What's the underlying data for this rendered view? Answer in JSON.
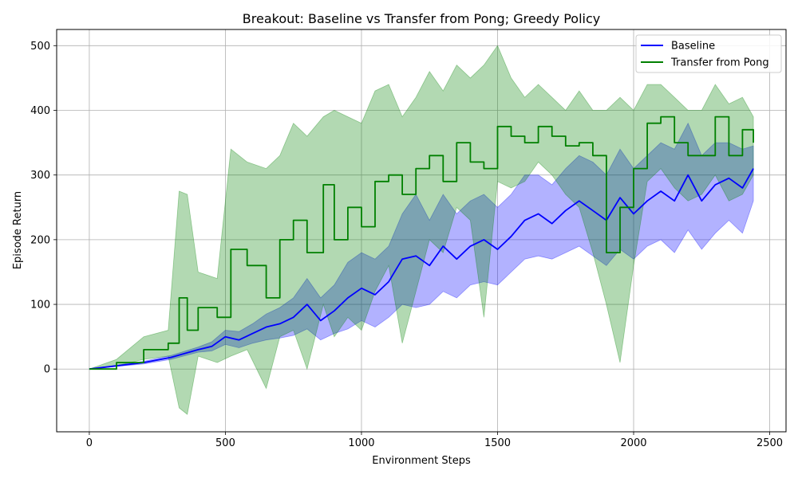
{
  "chart_data": {
    "type": "line",
    "title": "Breakout: Baseline vs Transfer from Pong; Greedy Policy",
    "xlabel": "Environment Steps",
    "ylabel": "Episode Return",
    "xlim": [
      -120,
      2560
    ],
    "ylim": [
      -97,
      525
    ],
    "xticks": [
      0,
      500,
      1000,
      1500,
      2000,
      2500
    ],
    "yticks": [
      0,
      100,
      200,
      300,
      400,
      500
    ],
    "grid": true,
    "legend_position": "top-right",
    "series": [
      {
        "name": "Baseline",
        "color": "#0000ff",
        "band_alpha": 0.3,
        "x": [
          0,
          100,
          200,
          300,
          400,
          450,
          500,
          550,
          600,
          650,
          700,
          750,
          800,
          850,
          900,
          950,
          1000,
          1050,
          1100,
          1150,
          1200,
          1250,
          1300,
          1350,
          1400,
          1450,
          1500,
          1550,
          1600,
          1650,
          1700,
          1750,
          1800,
          1850,
          1900,
          1950,
          2000,
          2050,
          2100,
          2150,
          2200,
          2250,
          2300,
          2350,
          2400,
          2440
        ],
        "mean": [
          0,
          5,
          10,
          18,
          30,
          35,
          50,
          45,
          55,
          65,
          70,
          80,
          100,
          75,
          90,
          110,
          125,
          115,
          135,
          170,
          175,
          160,
          190,
          170,
          190,
          200,
          185,
          205,
          230,
          240,
          225,
          245,
          260,
          245,
          230,
          265,
          240,
          260,
          275,
          260,
          300,
          260,
          285,
          295,
          280,
          310
        ],
        "lower": [
          0,
          4,
          8,
          15,
          26,
          28,
          38,
          33,
          40,
          45,
          48,
          52,
          62,
          45,
          55,
          62,
          75,
          65,
          80,
          100,
          95,
          100,
          120,
          110,
          130,
          135,
          130,
          150,
          170,
          175,
          170,
          180,
          190,
          175,
          160,
          185,
          170,
          190,
          200,
          180,
          215,
          185,
          210,
          230,
          210,
          260
        ],
        "upper": [
          0,
          6,
          12,
          21,
          34,
          42,
          60,
          58,
          70,
          85,
          95,
          110,
          140,
          110,
          130,
          165,
          180,
          170,
          190,
          240,
          270,
          230,
          270,
          240,
          260,
          270,
          250,
          270,
          300,
          300,
          285,
          310,
          330,
          320,
          300,
          340,
          310,
          330,
          350,
          340,
          380,
          330,
          350,
          350,
          340,
          345
        ]
      },
      {
        "name": "Transfer from Pong",
        "color": "#008000",
        "band_alpha": 0.3,
        "x": [
          0,
          100,
          200,
          290,
          330,
          360,
          400,
          470,
          520,
          580,
          650,
          700,
          750,
          800,
          860,
          900,
          950,
          1000,
          1050,
          1100,
          1150,
          1200,
          1250,
          1300,
          1350,
          1400,
          1450,
          1500,
          1550,
          1600,
          1650,
          1700,
          1750,
          1800,
          1850,
          1900,
          1950,
          2000,
          2050,
          2100,
          2150,
          2200,
          2250,
          2300,
          2350,
          2400,
          2440
        ],
        "mean": [
          0,
          10,
          30,
          40,
          110,
          60,
          95,
          80,
          185,
          160,
          110,
          200,
          230,
          180,
          285,
          200,
          250,
          220,
          290,
          300,
          270,
          310,
          330,
          290,
          350,
          320,
          310,
          375,
          360,
          350,
          375,
          360,
          345,
          350,
          330,
          180,
          250,
          310,
          380,
          390,
          350,
          330,
          330,
          390,
          330,
          370,
          350
        ],
        "lower": [
          0,
          5,
          15,
          20,
          -60,
          -70,
          20,
          10,
          20,
          30,
          -30,
          50,
          60,
          0,
          100,
          50,
          80,
          60,
          120,
          160,
          40,
          120,
          200,
          180,
          250,
          230,
          80,
          290,
          280,
          290,
          320,
          300,
          270,
          250,
          180,
          100,
          10,
          160,
          290,
          310,
          280,
          260,
          270,
          300,
          260,
          270,
          300
        ],
        "upper": [
          0,
          15,
          50,
          60,
          275,
          270,
          150,
          140,
          340,
          320,
          310,
          330,
          380,
          360,
          390,
          400,
          390,
          380,
          430,
          440,
          390,
          420,
          460,
          430,
          470,
          450,
          470,
          500,
          450,
          420,
          440,
          420,
          400,
          430,
          400,
          400,
          420,
          400,
          440,
          440,
          420,
          400,
          400,
          440,
          410,
          420,
          390
        ]
      }
    ]
  }
}
